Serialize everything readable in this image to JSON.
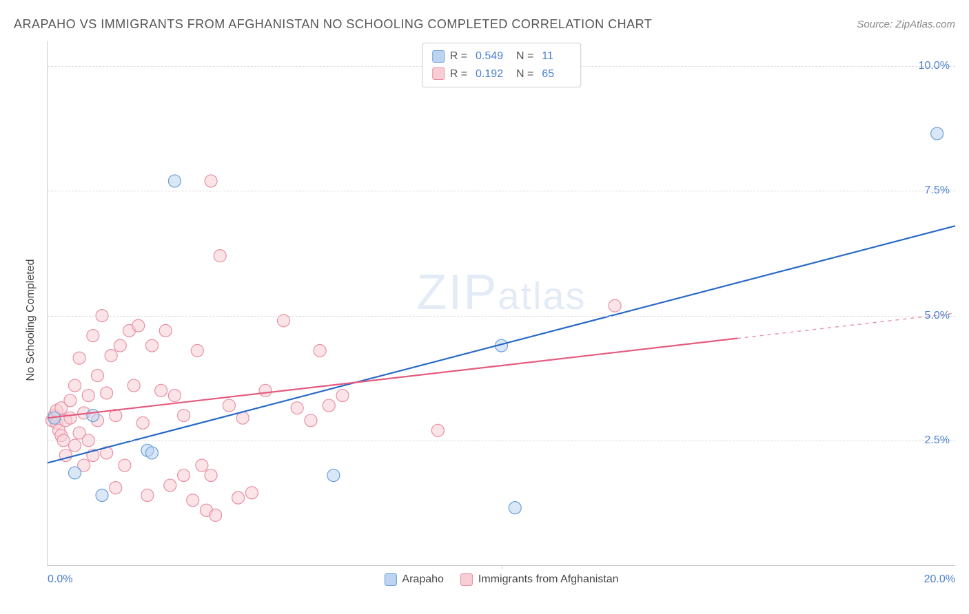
{
  "header": {
    "title": "ARAPAHO VS IMMIGRANTS FROM AFGHANISTAN NO SCHOOLING COMPLETED CORRELATION CHART",
    "source_prefix": "Source: ",
    "source": "ZipAtlas.com"
  },
  "watermark": {
    "zip": "ZIP",
    "atlas": "atlas"
  },
  "chart": {
    "type": "scatter",
    "y_axis_title": "No Schooling Completed",
    "xlim": [
      0,
      20
    ],
    "ylim": [
      0,
      10.5
    ],
    "x_ticks": [
      0,
      10,
      20
    ],
    "x_tick_labels": [
      "0.0%",
      "",
      "20.0%"
    ],
    "x_minor_tick": 10,
    "y_grid": [
      2.5,
      5.0,
      7.5,
      10.0
    ],
    "y_tick_labels": [
      "2.5%",
      "5.0%",
      "7.5%",
      "10.0%"
    ],
    "background_color": "#ffffff",
    "grid_color": "#dddddd",
    "axis_color": "#cccccc",
    "tick_label_color": "#4a7fce",
    "marker_radius": 9,
    "marker_opacity": 0.55,
    "marker_border_width": 1.2,
    "line_width": 2.2
  },
  "series": [
    {
      "name": "Arapaho",
      "color_fill": "#bcd4ef",
      "color_border": "#6a9fd8",
      "line_color": "#2869c6",
      "r": "0.549",
      "n": "11",
      "points": [
        [
          0.15,
          2.95
        ],
        [
          0.6,
          1.85
        ],
        [
          1.0,
          3.0
        ],
        [
          1.2,
          1.4
        ],
        [
          2.2,
          2.3
        ],
        [
          2.3,
          2.25
        ],
        [
          2.8,
          7.7
        ],
        [
          6.3,
          1.8
        ],
        [
          10.0,
          4.4
        ],
        [
          10.3,
          1.15
        ],
        [
          19.6,
          8.65
        ]
      ],
      "trend": {
        "x1": 0,
        "y1": 2.05,
        "x2": 20,
        "y2": 6.8,
        "dash_from_x": 20
      }
    },
    {
      "name": "Immigrants from Afghanistan",
      "color_fill": "#f7cdd6",
      "color_border": "#e88fa2",
      "line_color": "#e55a7e",
      "r": "0.192",
      "n": "65",
      "points": [
        [
          0.1,
          2.9
        ],
        [
          0.15,
          3.0
        ],
        [
          0.2,
          2.85
        ],
        [
          0.2,
          3.1
        ],
        [
          0.25,
          2.7
        ],
        [
          0.3,
          2.6
        ],
        [
          0.3,
          3.15
        ],
        [
          0.35,
          2.5
        ],
        [
          0.4,
          2.9
        ],
        [
          0.4,
          2.2
        ],
        [
          0.5,
          3.3
        ],
        [
          0.5,
          2.95
        ],
        [
          0.6,
          3.6
        ],
        [
          0.6,
          2.4
        ],
        [
          0.7,
          4.15
        ],
        [
          0.7,
          2.65
        ],
        [
          0.8,
          3.05
        ],
        [
          0.8,
          2.0
        ],
        [
          0.9,
          2.5
        ],
        [
          0.9,
          3.4
        ],
        [
          1.0,
          4.6
        ],
        [
          1.0,
          2.2
        ],
        [
          1.1,
          3.8
        ],
        [
          1.1,
          2.9
        ],
        [
          1.2,
          5.0
        ],
        [
          1.3,
          3.45
        ],
        [
          1.3,
          2.25
        ],
        [
          1.4,
          4.2
        ],
        [
          1.5,
          1.55
        ],
        [
          1.5,
          3.0
        ],
        [
          1.6,
          4.4
        ],
        [
          1.7,
          2.0
        ],
        [
          1.8,
          4.7
        ],
        [
          1.9,
          3.6
        ],
        [
          2.0,
          4.8
        ],
        [
          2.1,
          2.85
        ],
        [
          2.2,
          1.4
        ],
        [
          2.3,
          4.4
        ],
        [
          2.5,
          3.5
        ],
        [
          2.6,
          4.7
        ],
        [
          2.7,
          1.6
        ],
        [
          2.8,
          3.4
        ],
        [
          3.0,
          1.8
        ],
        [
          3.0,
          3.0
        ],
        [
          3.2,
          1.3
        ],
        [
          3.3,
          4.3
        ],
        [
          3.4,
          2.0
        ],
        [
          3.5,
          1.1
        ],
        [
          3.6,
          7.7
        ],
        [
          3.6,
          1.8
        ],
        [
          3.7,
          1.0
        ],
        [
          3.8,
          6.2
        ],
        [
          4.0,
          3.2
        ],
        [
          4.2,
          1.35
        ],
        [
          4.3,
          2.95
        ],
        [
          4.5,
          1.45
        ],
        [
          4.8,
          3.5
        ],
        [
          5.2,
          4.9
        ],
        [
          5.5,
          3.15
        ],
        [
          5.8,
          2.9
        ],
        [
          6.0,
          4.3
        ],
        [
          6.2,
          3.2
        ],
        [
          6.5,
          3.4
        ],
        [
          8.6,
          2.7
        ],
        [
          12.5,
          5.2
        ]
      ],
      "trend": {
        "x1": 0,
        "y1": 2.95,
        "x2": 20,
        "y2": 5.05,
        "dash_from_x": 15.2
      }
    }
  ],
  "legend_bottom": {
    "items": [
      "Arapaho",
      "Immigrants from Afghanistan"
    ]
  }
}
